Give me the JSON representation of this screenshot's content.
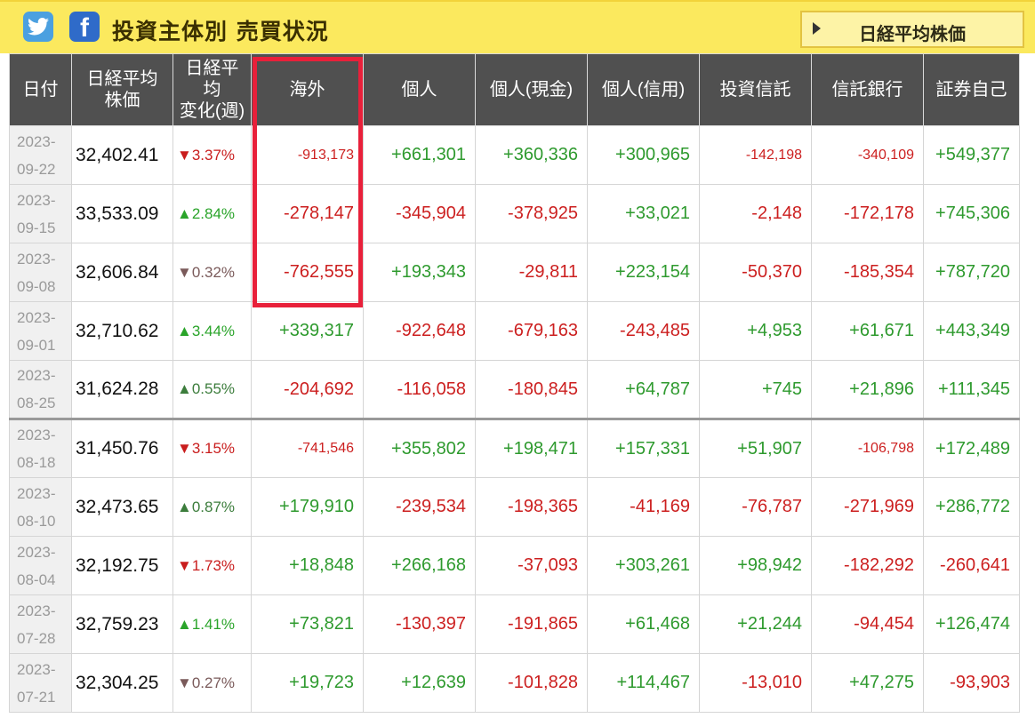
{
  "header": {
    "title": "投資主体別 売買状況",
    "nikkei_button": "日経平均株価",
    "twitter_icon": "twitter-icon",
    "facebook_icon": "facebook-icon",
    "facebook_glyph": "f"
  },
  "table": {
    "columns": [
      "日付",
      "日経平均株価",
      "日経平均変化(週)",
      "海外",
      "個人",
      "個人(現金)",
      "個人(信用)",
      "投資信託",
      "信託銀行",
      "証券自己"
    ],
    "rows": [
      {
        "date_y": "2023-",
        "date_md": "09-22",
        "price": "32,402.41",
        "chg_arrow": "▼",
        "chg": "3.37%",
        "overseas": "-913,173",
        "individual": "+661,301",
        "ind_cash": "+360,336",
        "ind_margin": "+300,965",
        "inv_trust": "-142,198",
        "trust_bank": "-340,109",
        "securities": "+549,377"
      },
      {
        "date_y": "2023-",
        "date_md": "09-15",
        "price": "33,533.09",
        "chg_arrow": "▲",
        "chg": "2.84%",
        "overseas": "-278,147",
        "individual": "-345,904",
        "ind_cash": "-378,925",
        "ind_margin": "+33,021",
        "inv_trust": "-2,148",
        "trust_bank": "-172,178",
        "securities": "+745,306"
      },
      {
        "date_y": "2023-",
        "date_md": "09-08",
        "price": "32,606.84",
        "chg_arrow": "▼",
        "chg": "0.32%",
        "overseas": "-762,555",
        "individual": "+193,343",
        "ind_cash": "-29,811",
        "ind_margin": "+223,154",
        "inv_trust": "-50,370",
        "trust_bank": "-185,354",
        "securities": "+787,720"
      },
      {
        "date_y": "2023-",
        "date_md": "09-01",
        "price": "32,710.62",
        "chg_arrow": "▲",
        "chg": "3.44%",
        "overseas": "+339,317",
        "individual": "-922,648",
        "ind_cash": "-679,163",
        "ind_margin": "-243,485",
        "inv_trust": "+4,953",
        "trust_bank": "+61,671",
        "securities": "+443,349"
      },
      {
        "date_y": "2023-",
        "date_md": "08-25",
        "price": "31,624.28",
        "chg_arrow": "▲",
        "chg": "0.55%",
        "overseas": "-204,692",
        "individual": "-116,058",
        "ind_cash": "-180,845",
        "ind_margin": "+64,787",
        "inv_trust": "+745",
        "trust_bank": "+21,896",
        "securities": "+111,345"
      },
      {
        "date_y": "2023-",
        "date_md": "08-18",
        "price": "31,450.76",
        "chg_arrow": "▼",
        "chg": "3.15%",
        "overseas": "-741,546",
        "individual": "+355,802",
        "ind_cash": "+198,471",
        "ind_margin": "+157,331",
        "inv_trust": "+51,907",
        "trust_bank": "-106,798",
        "securities": "+172,489"
      },
      {
        "date_y": "2023-",
        "date_md": "08-10",
        "price": "32,473.65",
        "chg_arrow": "▲",
        "chg": "0.87%",
        "overseas": "+179,910",
        "individual": "-239,534",
        "ind_cash": "-198,365",
        "ind_margin": "-41,169",
        "inv_trust": "-76,787",
        "trust_bank": "-271,969",
        "securities": "+286,772"
      },
      {
        "date_y": "2023-",
        "date_md": "08-04",
        "price": "32,192.75",
        "chg_arrow": "▼",
        "chg": "1.73%",
        "overseas": "+18,848",
        "individual": "+266,168",
        "ind_cash": "-37,093",
        "ind_margin": "+303,261",
        "inv_trust": "+98,942",
        "trust_bank": "-182,292",
        "securities": "-260,641"
      },
      {
        "date_y": "2023-",
        "date_md": "07-28",
        "price": "32,759.23",
        "chg_arrow": "▲",
        "chg": "1.41%",
        "overseas": "+73,821",
        "individual": "-130,397",
        "ind_cash": "-191,865",
        "ind_margin": "+61,468",
        "inv_trust": "+21,244",
        "trust_bank": "-94,454",
        "securities": "+126,474"
      },
      {
        "date_y": "2023-",
        "date_md": "07-21",
        "price": "32,304.25",
        "chg_arrow": "▼",
        "chg": "0.27%",
        "overseas": "+19,723",
        "individual": "+12,639",
        "ind_cash": "-101,828",
        "ind_margin": "+114,467",
        "inv_trust": "-13,010",
        "trust_bank": "+47,275",
        "securities": "-93,903"
      }
    ]
  },
  "colors": {
    "header_bar": "#fbe95e",
    "table_header": "#505050",
    "positive": "#2e9a2e",
    "negative": "#cc1f1f",
    "highlight_box": "#e8203a"
  }
}
